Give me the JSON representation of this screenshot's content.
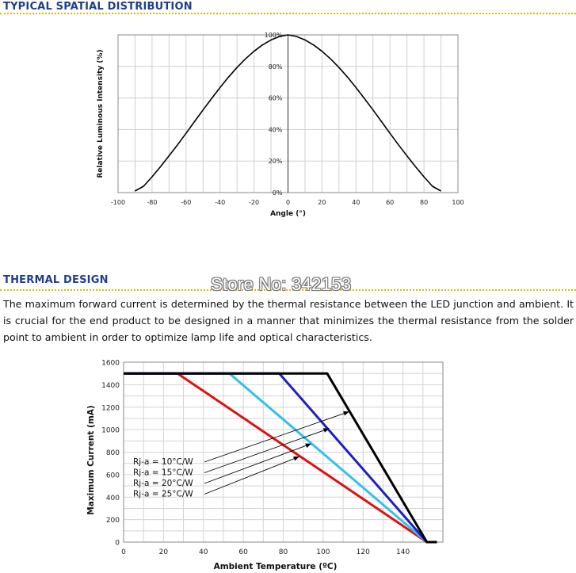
{
  "sections": {
    "spatial_heading": "TYPICAL SPATIAL DISTRIBUTION",
    "thermal_heading": "THERMAL DESIGN",
    "thermal_text": "The maximum forward current is determined by the thermal resistance between the LED junction and ambient. It is crucial for the end product to be designed in a manner that minimizes the thermal resistance from the solder point to ambient in order to optimize lamp life and optical characteristics.",
    "watermark": "Store No: 342153"
  },
  "chart_data": [
    {
      "type": "line",
      "xlabel": "Angle (°)",
      "ylabel": "Relative Luminous Intensity (%)",
      "xlim": [
        -100,
        100
      ],
      "ylim": [
        0,
        100
      ],
      "x_ticks": [
        "-100",
        "-80",
        "-60",
        "-40",
        "-20",
        "0",
        "20",
        "40",
        "60",
        "80",
        "100"
      ],
      "y_ticks": [
        "0%",
        "20%",
        "40%",
        "60%",
        "80%",
        "100%"
      ],
      "grid": true,
      "series": [
        {
          "color": "#000000",
          "x": [
            -90,
            -85,
            -80,
            -75,
            -70,
            -65,
            -60,
            -55,
            -50,
            -45,
            -40,
            -35,
            -30,
            -25,
            -20,
            -15,
            -10,
            -5,
            0,
            5,
            10,
            15,
            20,
            25,
            30,
            35,
            40,
            45,
            50,
            55,
            60,
            65,
            70,
            75,
            80,
            85,
            90
          ],
          "y": [
            1,
            4,
            10,
            16.5,
            23.3,
            30.3,
            37.6,
            45,
            52.4,
            59.6,
            66.6,
            73.2,
            79.3,
            84.8,
            89.6,
            93.6,
            96.8,
            99,
            100,
            99,
            96.8,
            93.6,
            89.6,
            84.8,
            79.3,
            73.2,
            66.6,
            59.6,
            52.4,
            45,
            37.6,
            30.3,
            23.3,
            16.5,
            10,
            4,
            1
          ]
        }
      ]
    },
    {
      "type": "line",
      "xlabel": "Ambient Temperature (ºC)",
      "ylabel": "Maximum Current (mA)",
      "xlim": [
        0,
        160
      ],
      "ylim": [
        0,
        1600
      ],
      "x_ticks": [
        "0",
        "20",
        "40",
        "60",
        "80",
        "100",
        "120",
        "140"
      ],
      "y_ticks": [
        "0",
        "200",
        "400",
        "600",
        "800",
        "1000",
        "1200",
        "1400",
        "1600"
      ],
      "grid": true,
      "series": [
        {
          "name": "Rj-a = 10°C/W",
          "color": "#000000",
          "x": [
            0,
            102,
            152,
            157
          ],
          "y": [
            1500,
            1500,
            0,
            0
          ]
        },
        {
          "name": "Rj-a = 15°C/W",
          "color": "#2020c0",
          "x": [
            0,
            78,
            152,
            157
          ],
          "y": [
            1500,
            1500,
            0,
            0
          ]
        },
        {
          "name": "Rj-a = 20°C/W",
          "color": "#33bfee",
          "x": [
            0,
            53,
            152,
            157
          ],
          "y": [
            1500,
            1500,
            0,
            0
          ]
        },
        {
          "name": "Rj-a = 25°C/W",
          "color": "#e01010",
          "x": [
            0,
            27,
            152,
            157
          ],
          "y": [
            1500,
            1500,
            0,
            0
          ]
        }
      ],
      "annotations": [
        {
          "text": "Rj-a = 10°C/W",
          "points_to": [
            113,
            1160
          ]
        },
        {
          "text": "Rj-a = 15°C/W",
          "points_to": [
            103,
            1010
          ]
        },
        {
          "text": "Rj-a = 20°C/W",
          "points_to": [
            94,
            875
          ]
        },
        {
          "text": "Rj-a = 25°C/W",
          "points_to": [
            88,
            760
          ]
        }
      ]
    }
  ]
}
